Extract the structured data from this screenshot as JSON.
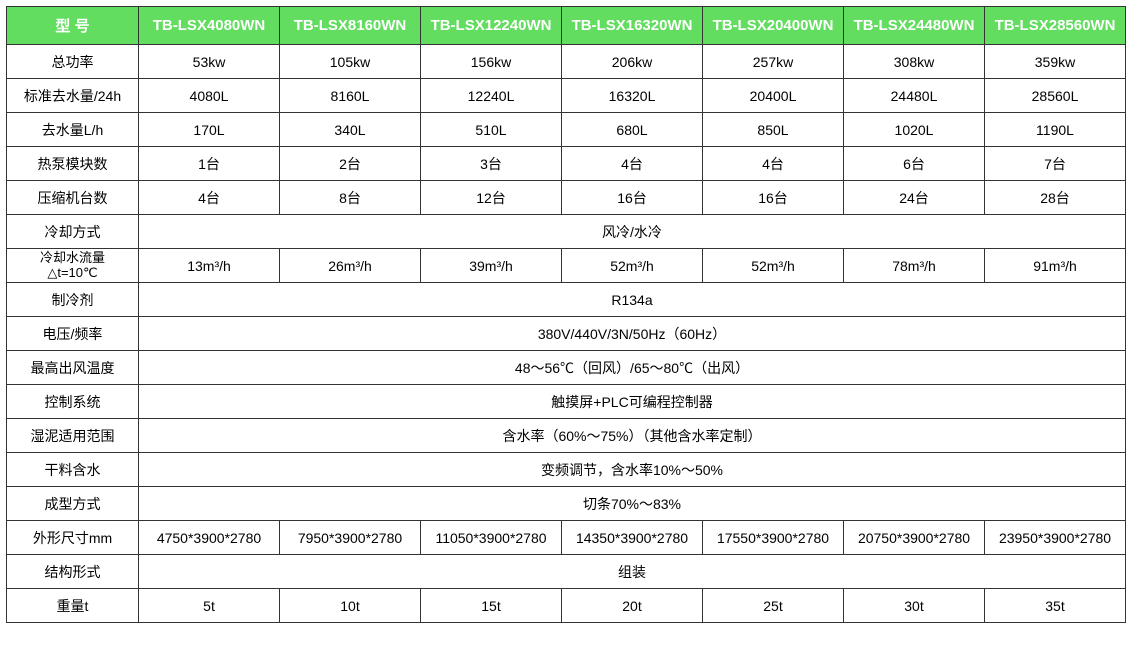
{
  "header_bg": "#62dd60",
  "header_fg": "#ffffff",
  "border_color": "#333333",
  "cell_bg": "#ffffff",
  "cell_fg": "#000000",
  "font_family": "Microsoft YaHei, SimSun, Arial, sans-serif",
  "header_fontsize": 15,
  "cell_fontsize": 14,
  "columns": {
    "label_width": 132,
    "data_width": 141
  },
  "headers": [
    "型  号",
    "TB-LSX4080WN",
    "TB-LSX8160WN",
    "TB-LSX12240WN",
    "TB-LSX16320WN",
    "TB-LSX20400WN",
    "TB-LSX24480WN",
    "TB-LSX28560WN"
  ],
  "rows": [
    {
      "label": "总功率",
      "cells": [
        "53kw",
        "105kw",
        "156kw",
        "206kw",
        "257kw",
        "308kw",
        "359kw"
      ]
    },
    {
      "label": "标准去水量/24h",
      "cells": [
        "4080L",
        "8160L",
        "12240L",
        "16320L",
        "20400L",
        "24480L",
        "28560L"
      ]
    },
    {
      "label": "去水量L/h",
      "cells": [
        "170L",
        "340L",
        "510L",
        "680L",
        "850L",
        "1020L",
        "1190L"
      ]
    },
    {
      "label": "热泵模块数",
      "cells": [
        "1台",
        "2台",
        "3台",
        "4台",
        "4台",
        "6台",
        "7台"
      ]
    },
    {
      "label": "压缩机台数",
      "cells": [
        "4台",
        "8台",
        "12台",
        "16台",
        "16台",
        "24台",
        "28台"
      ]
    },
    {
      "label": "冷却方式",
      "span": "风冷/水冷"
    },
    {
      "label": "冷却水流量\n△t=10℃",
      "two_line": true,
      "cells": [
        "13m³/h",
        "26m³/h",
        "39m³/h",
        "52m³/h",
        "52m³/h",
        "78m³/h",
        "91m³/h"
      ]
    },
    {
      "label": "制冷剂",
      "span": "R134a"
    },
    {
      "label": "电压/频率",
      "span": "380V/440V/3N/50Hz（60Hz）"
    },
    {
      "label": "最高出风温度",
      "span": "48～56℃（回风）/65～80℃（出风）"
    },
    {
      "label": "控制系统",
      "span": "触摸屏+PLC可编程控制器"
    },
    {
      "label": "湿泥适用范围",
      "span": "含水率（60%～75%）（其他含水率定制）"
    },
    {
      "label": "干料含水",
      "span": "变频调节，含水率10%～50%"
    },
    {
      "label": "成型方式",
      "span": "切条70%～83%"
    },
    {
      "label": "外形尺寸mm",
      "cells": [
        "4750*3900*2780",
        "7950*3900*2780",
        "11050*3900*2780",
        "14350*3900*2780",
        "17550*3900*2780",
        "20750*3900*2780",
        "23950*3900*2780"
      ]
    },
    {
      "label": "结构形式",
      "span": "组装"
    },
    {
      "label": "重量t",
      "cells": [
        "5t",
        "10t",
        "15t",
        "20t",
        "25t",
        "30t",
        "35t"
      ]
    }
  ]
}
